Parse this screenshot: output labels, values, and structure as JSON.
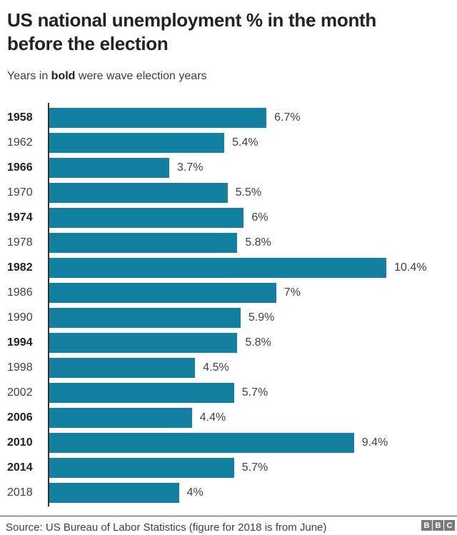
{
  "header": {
    "title": "US national unemployment % in the month before the election",
    "subtitle": {
      "pre": "Years in ",
      "bold": "bold",
      "post": " were wave election years"
    }
  },
  "chart_data": {
    "type": "bar",
    "orientation": "horizontal",
    "title": "US national unemployment % in the month before the election",
    "subtitle": "Years in bold were wave election years",
    "categories": [
      "1958",
      "1962",
      "1966",
      "1970",
      "1974",
      "1978",
      "1982",
      "1986",
      "1990",
      "1994",
      "1998",
      "2002",
      "2006",
      "2010",
      "2014",
      "2018"
    ],
    "values": [
      6.7,
      5.4,
      3.7,
      5.5,
      6,
      5.8,
      10.4,
      7,
      5.9,
      5.8,
      4.5,
      5.7,
      4.4,
      9.4,
      5.7,
      4
    ],
    "value_labels": [
      "6.7%",
      "5.4%",
      "3.7%",
      "5.5%",
      "6%",
      "5.8%",
      "10.4%",
      "7%",
      "5.9%",
      "5.8%",
      "4.5%",
      "5.7%",
      "4.4%",
      "9.4%",
      "5.7%",
      "4%"
    ],
    "wave_years": [
      "1958",
      "1966",
      "1974",
      "1982",
      "1994",
      "2006",
      "2010",
      "2014"
    ],
    "xlim": [
      0,
      10.4
    ],
    "grid": false,
    "legend": false,
    "bar_color": "#1380A1",
    "axis_color": "#333333"
  },
  "footer": {
    "source": "Source: US Bureau of Labor Statistics (figure for 2018 is from June)",
    "logo_blocks": [
      "B",
      "B",
      "C"
    ]
  }
}
